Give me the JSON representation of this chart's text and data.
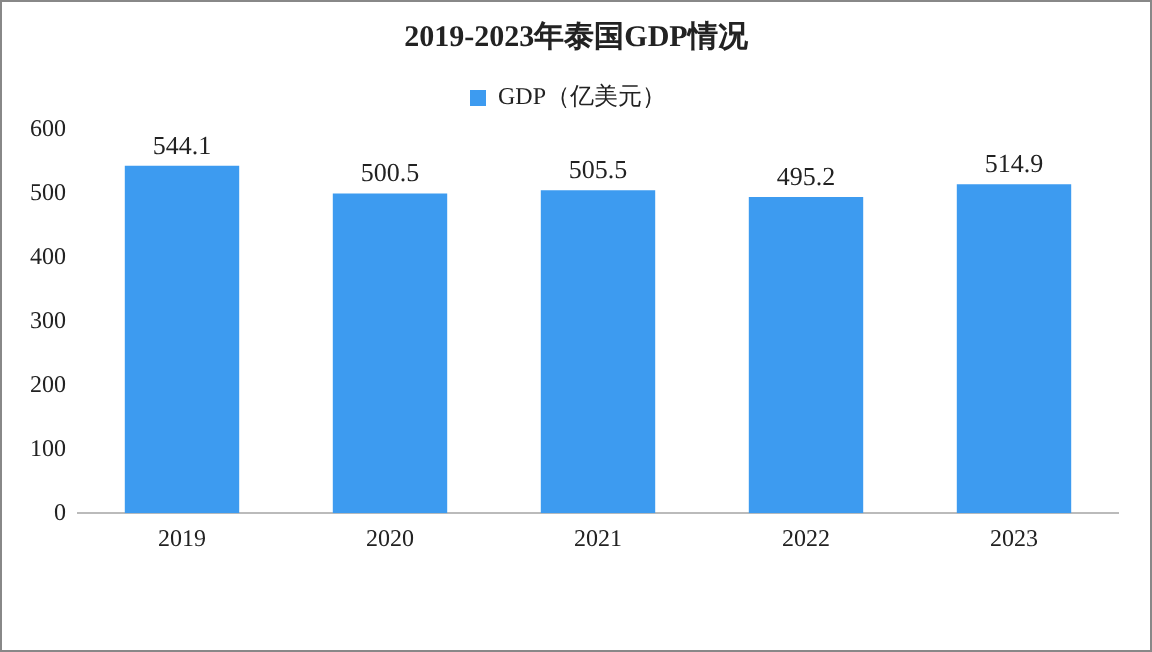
{
  "chart_data": {
    "type": "bar",
    "title": "2019-2023年泰国GDP情况",
    "categories": [
      "2019",
      "2020",
      "2021",
      "2022",
      "2023"
    ],
    "series": [
      {
        "name": "GDP（亿美元）",
        "color": "#3d9bf0",
        "values": [
          544.1,
          500.5,
          505.5,
          495.2,
          514.9
        ]
      }
    ],
    "ylim": [
      0,
      600
    ],
    "yticks": [
      0,
      100,
      200,
      300,
      400,
      500,
      600
    ],
    "grid": false,
    "legend": "top",
    "data_labels": true
  }
}
